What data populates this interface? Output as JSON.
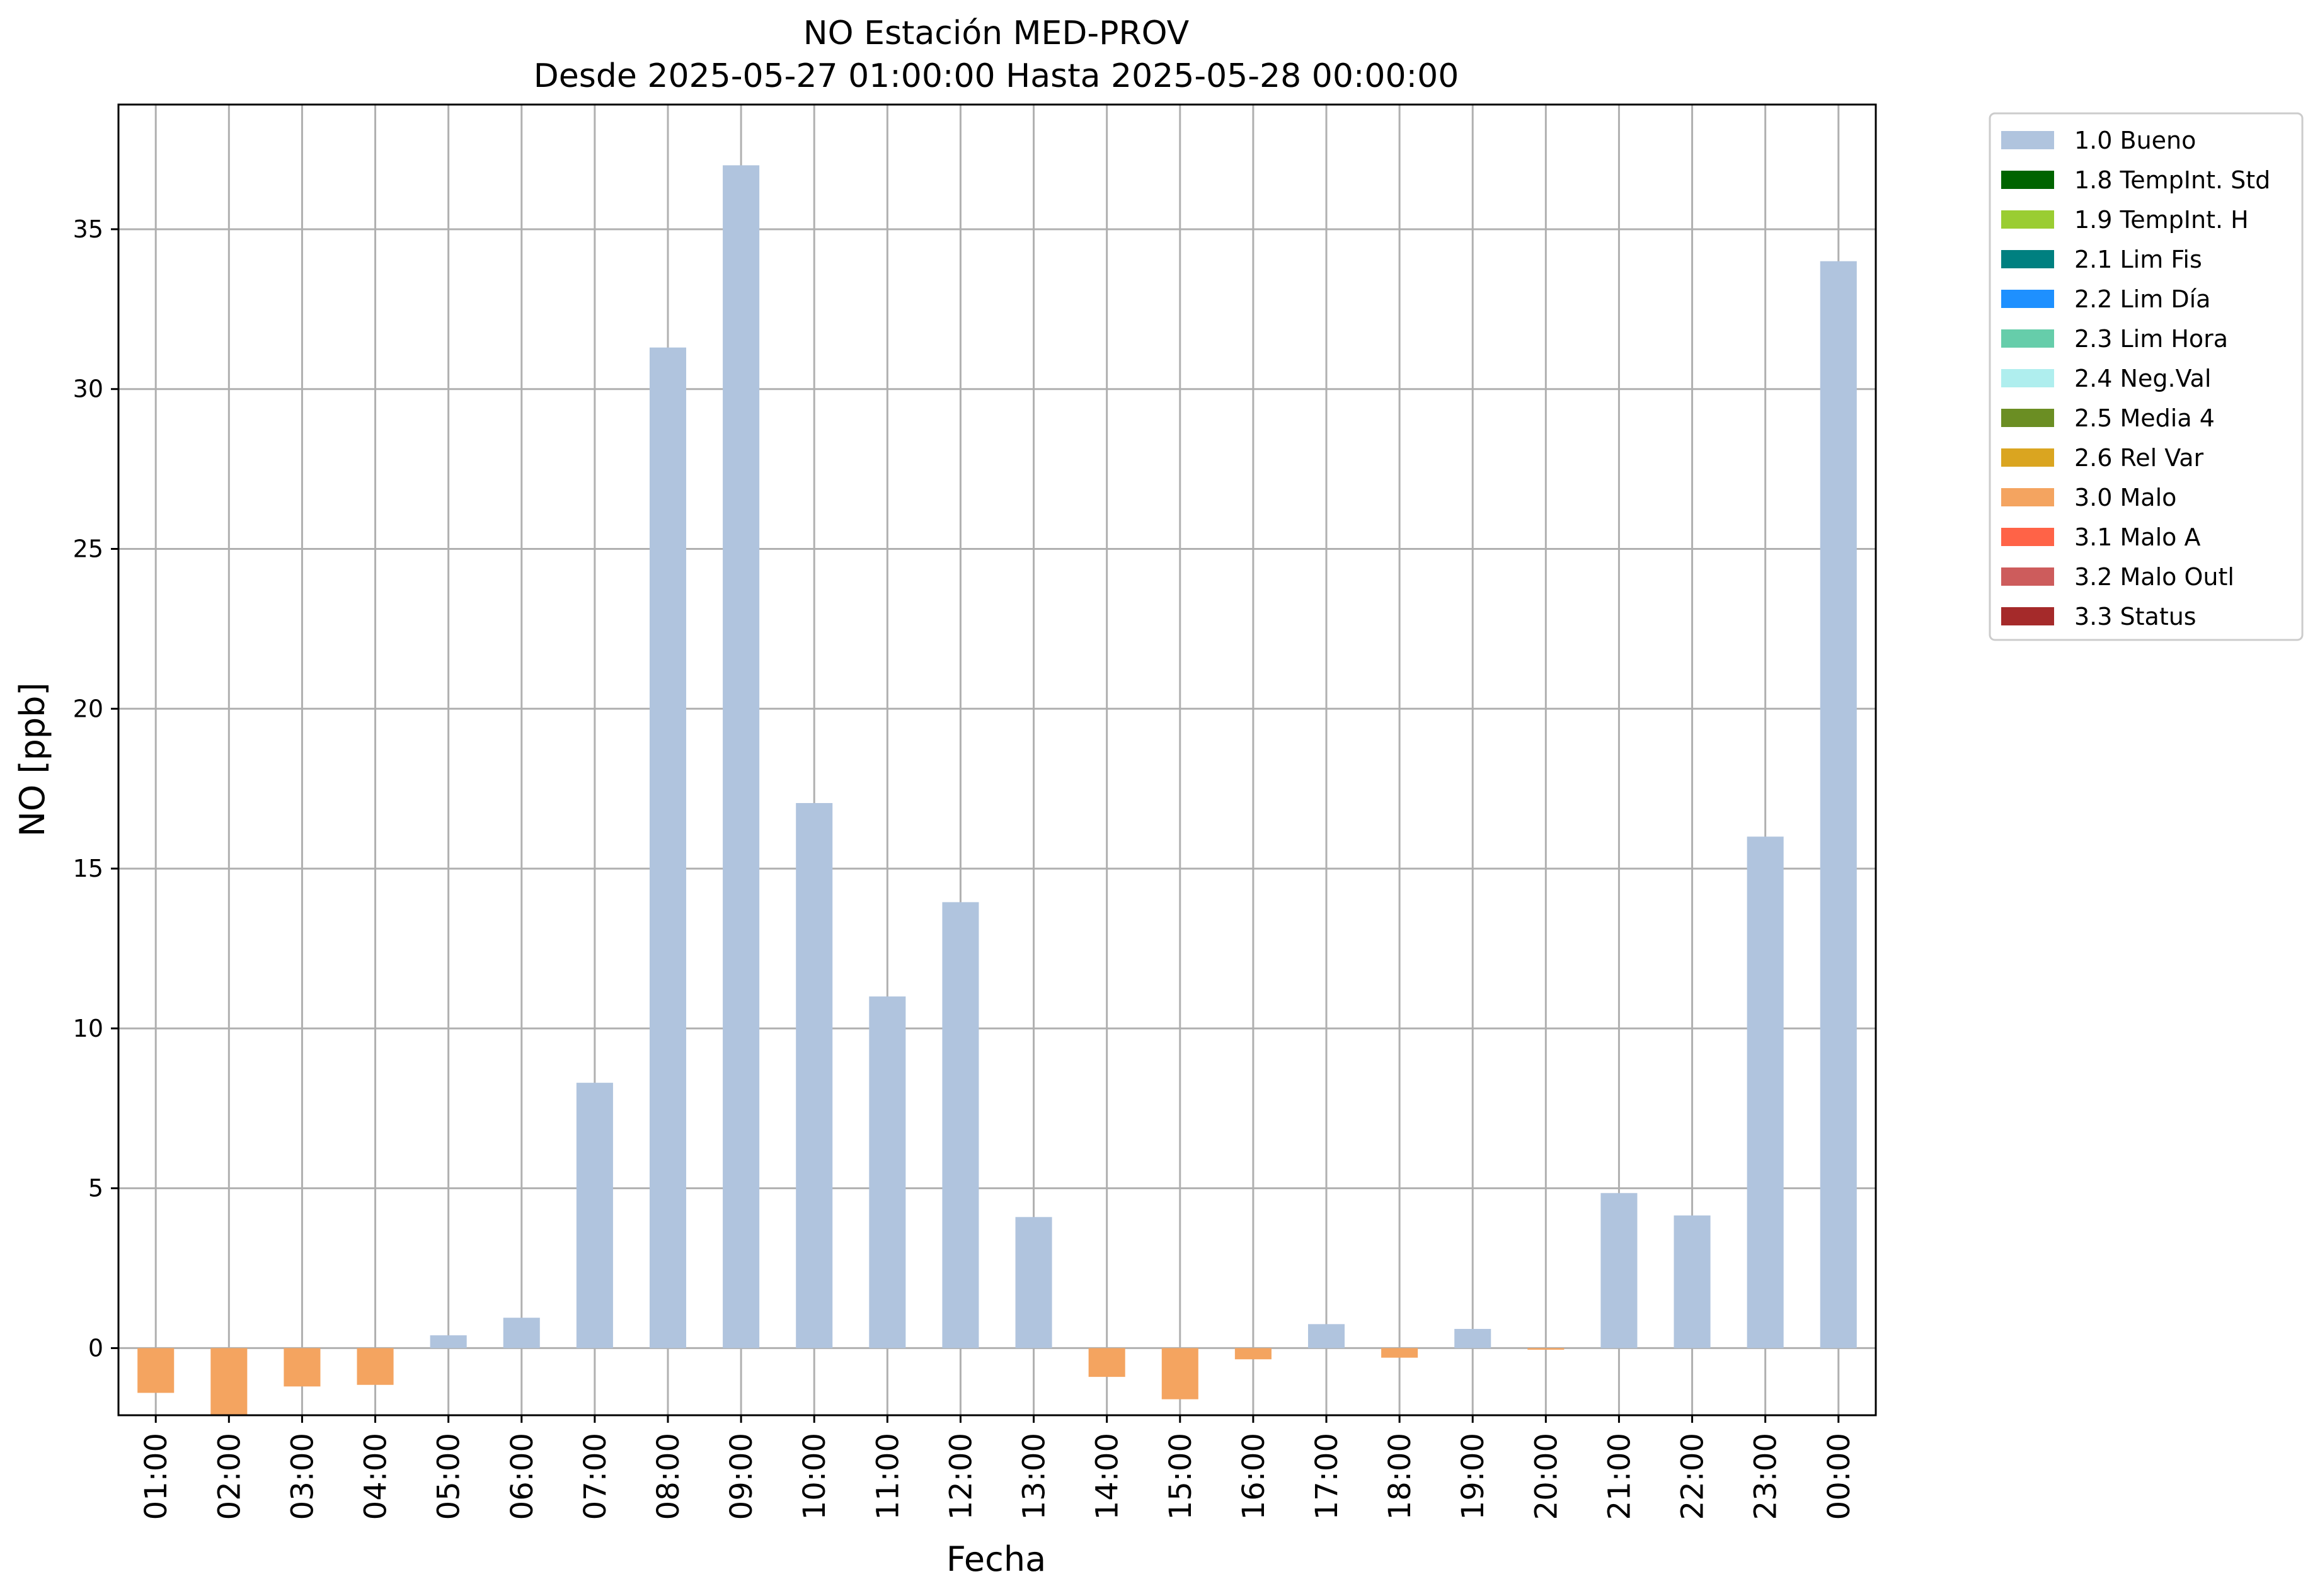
{
  "chart_data": {
    "type": "bar",
    "title": "NO Estación MED-PROV",
    "subtitle": "Desde 2025-05-27 01:00:00 Hasta 2025-05-28 00:00:00",
    "xlabel": "Fecha",
    "ylabel": "NO [ppb]",
    "ylim": [
      -2.1,
      38.9
    ],
    "yticks": [
      0,
      5,
      10,
      15,
      20,
      25,
      30,
      35
    ],
    "grid": true,
    "legend_position": "outside-top-right",
    "categories": [
      "01:00",
      "02:00",
      "03:00",
      "04:00",
      "05:00",
      "06:00",
      "07:00",
      "08:00",
      "09:00",
      "10:00",
      "11:00",
      "12:00",
      "13:00",
      "14:00",
      "15:00",
      "16:00",
      "17:00",
      "18:00",
      "19:00",
      "20:00",
      "21:00",
      "22:00",
      "23:00",
      "00:00"
    ],
    "values": [
      -1.4,
      -2.1,
      -1.2,
      -1.15,
      0.4,
      0.95,
      8.3,
      31.3,
      37.0,
      17.05,
      11.0,
      13.95,
      4.1,
      -0.9,
      -1.6,
      -0.35,
      0.75,
      -0.3,
      0.6,
      -0.05,
      4.85,
      4.15,
      16.0,
      34.0
    ],
    "flags": [
      "3.0 Malo",
      "3.0 Malo",
      "3.0 Malo",
      "3.0 Malo",
      "1.0 Bueno",
      "1.0 Bueno",
      "1.0 Bueno",
      "1.0 Bueno",
      "1.0 Bueno",
      "1.0 Bueno",
      "1.0 Bueno",
      "1.0 Bueno",
      "1.0 Bueno",
      "3.0 Malo",
      "3.0 Malo",
      "3.0 Malo",
      "1.0 Bueno",
      "3.0 Malo",
      "1.0 Bueno",
      "3.0 Malo",
      "1.0 Bueno",
      "1.0 Bueno",
      "1.0 Bueno",
      "1.0 Bueno"
    ],
    "legend": [
      {
        "label": "1.0 Bueno",
        "color": "#b0c4de"
      },
      {
        "label": "1.8 TempInt. Std",
        "color": "#006400"
      },
      {
        "label": "1.9 TempInt. H",
        "color": "#9acd32"
      },
      {
        "label": "2.1 Lim Fis",
        "color": "#008080"
      },
      {
        "label": "2.2 Lim Día",
        "color": "#1e90ff"
      },
      {
        "label": "2.3 Lim Hora",
        "color": "#66cdaa"
      },
      {
        "label": "2.4 Neg.Val",
        "color": "#afeeee"
      },
      {
        "label": "2.5 Media 4",
        "color": "#6b8e23"
      },
      {
        "label": "2.6 Rel Var",
        "color": "#daa520"
      },
      {
        "label": "3.0 Malo",
        "color": "#f4a460"
      },
      {
        "label": "3.1 Malo A",
        "color": "#ff6347"
      },
      {
        "label": "3.2 Malo Outl",
        "color": "#cd5c5c"
      },
      {
        "label": "3.3 Status",
        "color": "#a52a2a"
      }
    ]
  }
}
